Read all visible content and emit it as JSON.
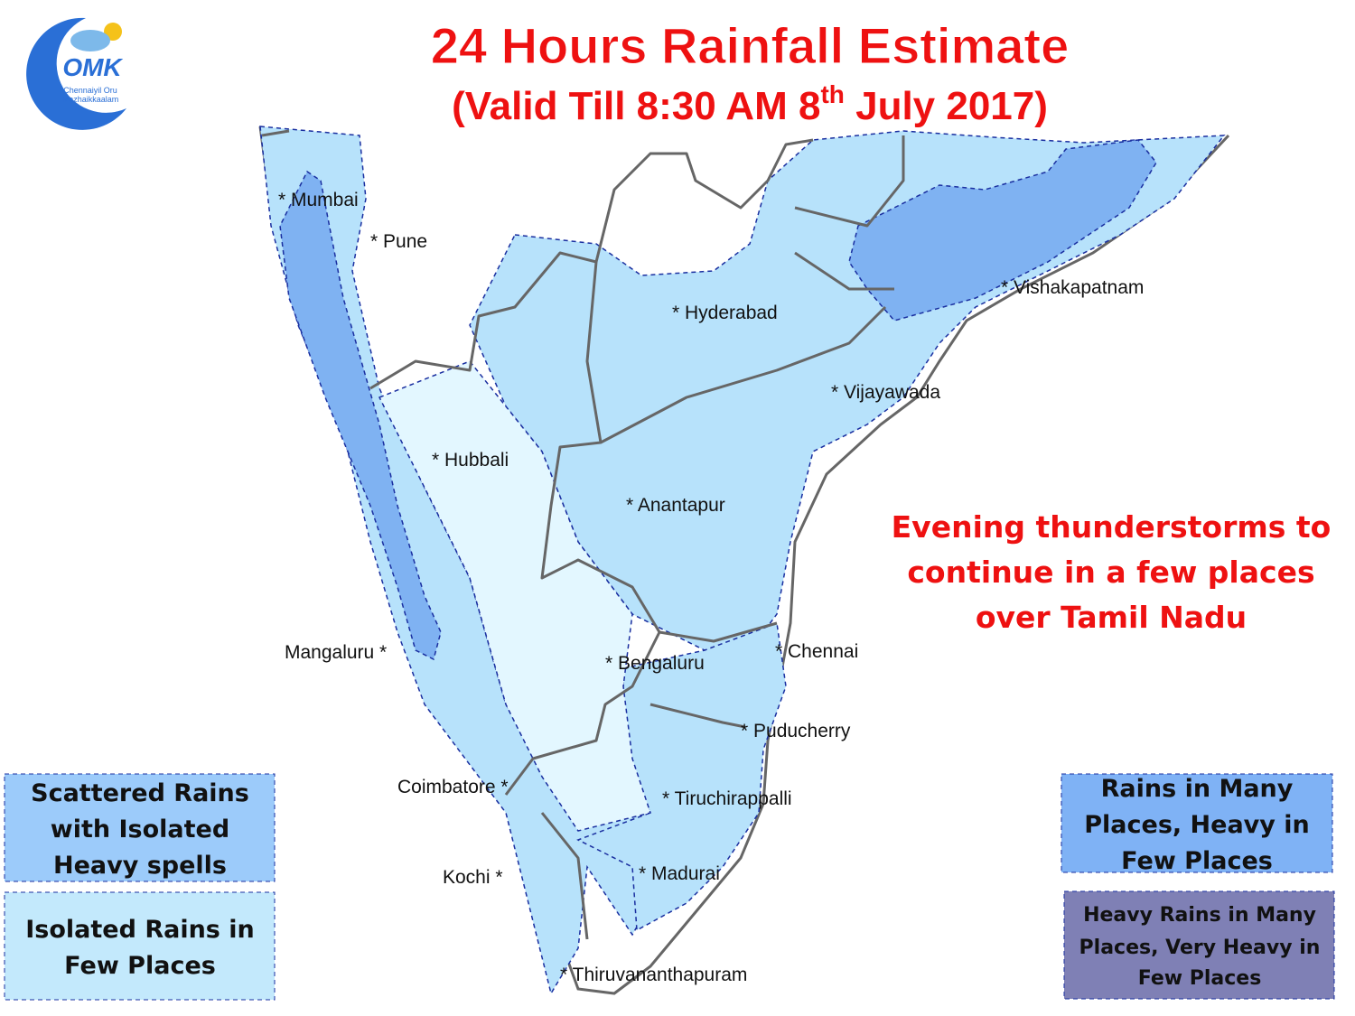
{
  "logo": {
    "text": "OMK",
    "tagline": [
      "Chennaiyil Oru",
      "Mazhaikkaalam"
    ]
  },
  "header": {
    "title": "24 Hours Rainfall Estimate",
    "subtitle": [
      "(Valid Till 8:30 AM 8",
      "th",
      " July 2017)"
    ]
  },
  "note": [
    "Evening thunderstorms to",
    "continue in a few places",
    "over Tamil Nadu"
  ],
  "cities": [
    "*  Mumbai",
    "*  Pune",
    "*  Hyderabad",
    "*  Vishakapatnam",
    "*  Vijayawada",
    "*  Hubbali",
    "*  Anantapur",
    "Mangaluru  *",
    "*  Bengaluru",
    "* Chennai",
    "* Puducherry",
    "Coimbatore  *",
    "*  Tiruchirappalli",
    "Kochi  *",
    "*  Madurai",
    "*  Thiruvananthapuram"
  ],
  "legend": [
    [
      "Scattered Rains",
      "with Isolated",
      "Heavy spells"
    ],
    [
      "Isolated Rains in",
      "Few  Places"
    ],
    [
      "Rains in Many",
      "Places, Heavy in",
      "Few Places"
    ],
    [
      "Heavy Rains in Many",
      "Places, Very Heavy in",
      "Few Places"
    ]
  ]
}
